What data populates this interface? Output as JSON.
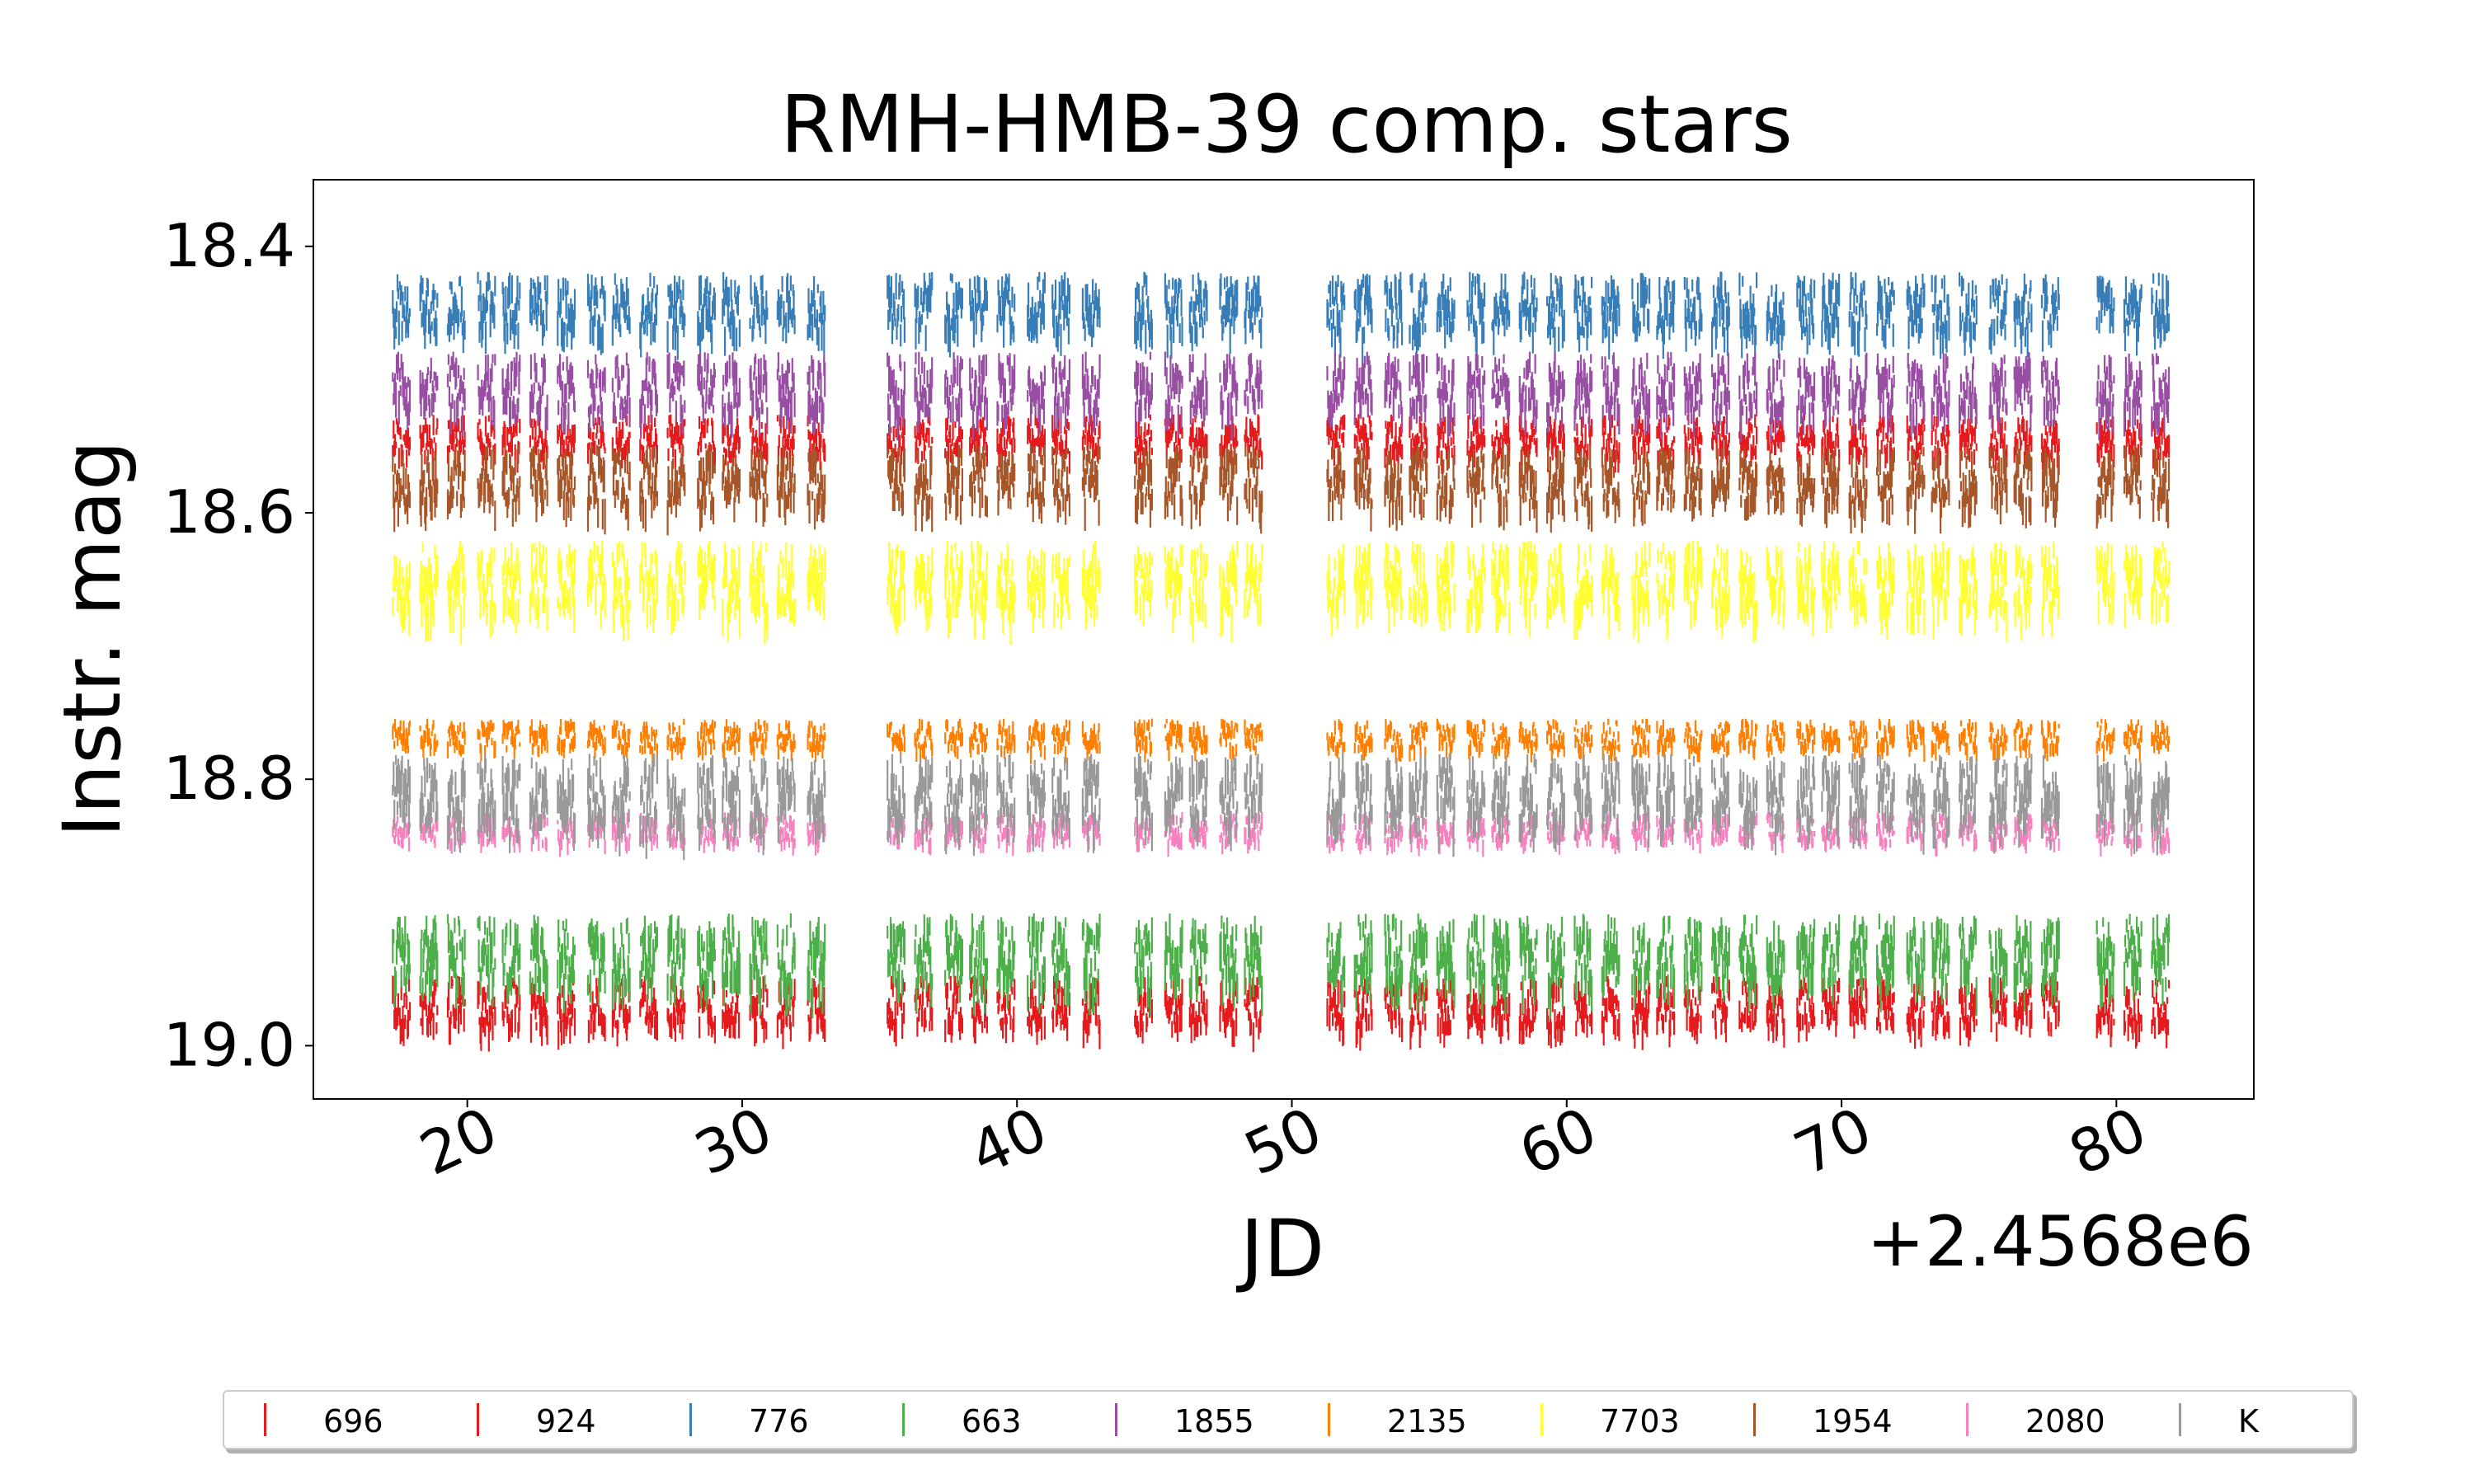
{
  "chart_data": {
    "type": "line",
    "title": "RMH-HMB-39 comp. stars",
    "xlabel": "JD",
    "ylabel": "Instr. mag",
    "x_offset_label": "+2.4568e6",
    "xlim": [
      14.4,
      85.0
    ],
    "ylim": [
      19.04,
      18.35
    ],
    "y_inverted": true,
    "x_ticks": [
      20,
      30,
      40,
      50,
      60,
      70,
      80
    ],
    "x_tick_labels": [
      "20",
      "30",
      "40",
      "50",
      "60",
      "70",
      "80"
    ],
    "y_ticks": [
      18.4,
      18.6,
      18.8,
      19.0
    ],
    "y_tick_labels": [
      "18.4",
      "18.6",
      "18.8",
      "19.0"
    ],
    "observing_nights": [
      17.6,
      18.6,
      19.6,
      20.7,
      21.6,
      22.6,
      23.6,
      24.7,
      25.6,
      26.6,
      27.6,
      28.7,
      29.6,
      30.6,
      31.6,
      32.7,
      35.6,
      36.6,
      37.7,
      38.6,
      39.6,
      40.7,
      41.6,
      42.7,
      44.6,
      45.7,
      46.6,
      47.7,
      48.6,
      51.6,
      52.6,
      53.7,
      54.6,
      55.6,
      56.7,
      57.6,
      58.6,
      59.6,
      60.6,
      61.6,
      62.7,
      63.6,
      64.6,
      65.6,
      66.6,
      67.6,
      68.7,
      69.6,
      70.6,
      71.6,
      72.7,
      73.6,
      74.6,
      75.7,
      76.6,
      77.6,
      79.6,
      80.6,
      81.6
    ],
    "legend": {
      "placement": "below",
      "entries": [
        "696",
        "924",
        "776",
        "663",
        "1855",
        "2135",
        "7703",
        "1954",
        "2080",
        "K"
      ]
    },
    "series": [
      {
        "name": "696",
        "color": "#e41a1c",
        "mag_range": [
          18.94,
          18.99
        ]
      },
      {
        "name": "924",
        "color": "#e41a1c",
        "mag_range": [
          18.52,
          18.56
        ]
      },
      {
        "name": "776",
        "color": "#377eb8",
        "mag_range": [
          18.41,
          18.47
        ]
      },
      {
        "name": "663",
        "color": "#4daf4a",
        "mag_range": [
          18.89,
          18.96
        ]
      },
      {
        "name": "1855",
        "color": "#984ea3",
        "mag_range": [
          18.47,
          18.53
        ]
      },
      {
        "name": "2135",
        "color": "#ff7f00",
        "mag_range": [
          18.75,
          18.78
        ]
      },
      {
        "name": "7703",
        "color": "#ffff33",
        "mag_range": [
          18.61,
          18.68
        ]
      },
      {
        "name": "1954",
        "color": "#a65628",
        "mag_range": [
          18.54,
          18.6
        ]
      },
      {
        "name": "2080",
        "color": "#f781bf",
        "mag_range": [
          18.82,
          18.85
        ]
      },
      {
        "name": "K",
        "color": "#999999",
        "mag_range": [
          18.77,
          18.84
        ]
      }
    ]
  }
}
